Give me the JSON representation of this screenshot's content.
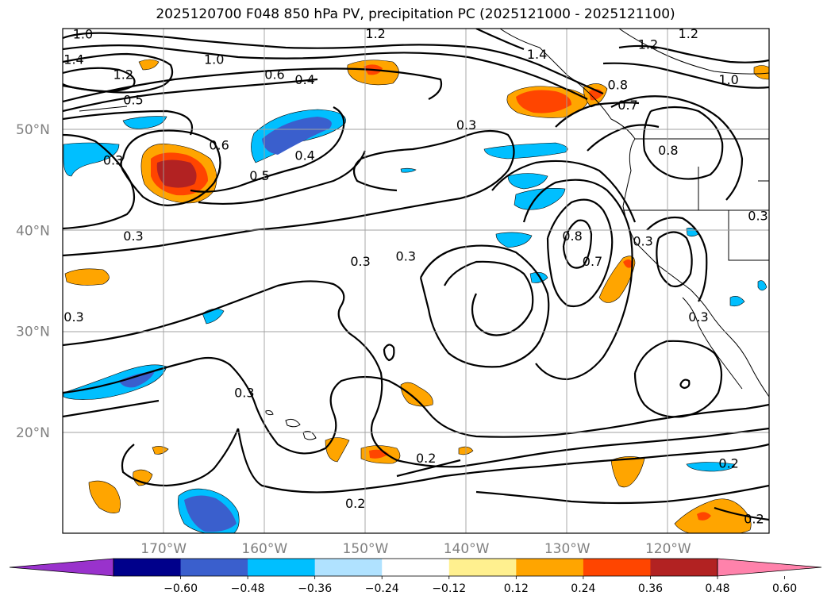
{
  "title": "2025120700 F048 850 hPa PV, precipitation PC (2025121000 - 2025121100)",
  "map": {
    "projection": "PlateCarree",
    "lon_range": [
      -180,
      -110
    ],
    "lat_range": [
      10,
      60
    ],
    "gridlines": true,
    "lat_ticks": [
      {
        "value": 50,
        "label": "50°N"
      },
      {
        "value": 40,
        "label": "40°N"
      },
      {
        "value": 30,
        "label": "30°N"
      },
      {
        "value": 20,
        "label": "20°N"
      }
    ],
    "lon_ticks": [
      {
        "value": -170,
        "label": "170°W"
      },
      {
        "value": -160,
        "label": "160°W"
      },
      {
        "value": -150,
        "label": "150°W"
      },
      {
        "value": -140,
        "label": "140°W"
      },
      {
        "value": -130,
        "label": "130°W"
      },
      {
        "value": -120,
        "label": "120°W"
      }
    ],
    "contour_labels": [
      {
        "text": "1.0",
        "lon": -178,
        "lat": 59
      },
      {
        "text": "1.4",
        "lon": -180,
        "lat": 56.5
      },
      {
        "text": "1.2",
        "lon": -174,
        "lat": 55
      },
      {
        "text": "1.0",
        "lon": -165,
        "lat": 56.5
      },
      {
        "text": "0.6",
        "lon": -159,
        "lat": 55
      },
      {
        "text": "0.4",
        "lon": -156,
        "lat": 54.5
      },
      {
        "text": "0.5",
        "lon": -173,
        "lat": 52.5
      },
      {
        "text": "0.3",
        "lon": -175,
        "lat": 46.5
      },
      {
        "text": "0.6",
        "lon": -164.5,
        "lat": 48
      },
      {
        "text": "0.5",
        "lon": -160.5,
        "lat": 45
      },
      {
        "text": "0.4",
        "lon": -156,
        "lat": 47
      },
      {
        "text": "0.3",
        "lon": -140,
        "lat": 50
      },
      {
        "text": "1.2",
        "lon": -149,
        "lat": 60.5
      },
      {
        "text": "1.4",
        "lon": -133,
        "lat": 57
      },
      {
        "text": "1.2",
        "lon": -122,
        "lat": 58
      },
      {
        "text": "1.2",
        "lon": -118,
        "lat": 61
      },
      {
        "text": "1.0",
        "lon": -114,
        "lat": 54.5
      },
      {
        "text": "0.8",
        "lon": -125,
        "lat": 54
      },
      {
        "text": "0.7",
        "lon": -124,
        "lat": 52
      },
      {
        "text": "0.8",
        "lon": -120,
        "lat": 47.5
      },
      {
        "text": "0.8",
        "lon": -129.5,
        "lat": 39
      },
      {
        "text": "0.7",
        "lon": -127.5,
        "lat": 36.5
      },
      {
        "text": "0.3",
        "lon": -150.5,
        "lat": 36.5
      },
      {
        "text": "0.3",
        "lon": -146,
        "lat": 37
      },
      {
        "text": "0.3",
        "lon": -173,
        "lat": 39
      },
      {
        "text": "0.3",
        "lon": -180,
        "lat": 31
      },
      {
        "text": "0.3",
        "lon": -122.5,
        "lat": 38.5
      },
      {
        "text": "0.3",
        "lon": -117,
        "lat": 31
      },
      {
        "text": "0.3",
        "lon": -110.5,
        "lat": 41
      },
      {
        "text": "0.3",
        "lon": -162,
        "lat": 23.5
      },
      {
        "text": "0.2",
        "lon": -144,
        "lat": 17
      },
      {
        "text": "0.2",
        "lon": -151,
        "lat": 12.5
      },
      {
        "text": "0.2",
        "lon": -114,
        "lat": 16.5
      },
      {
        "text": "0.2",
        "lon": -111.5,
        "lat": 11
      }
    ]
  },
  "colorbar": {
    "levels": [
      "−0.60",
      "−0.48",
      "−0.36",
      "−0.24",
      "−0.12",
      "0.12",
      "0.24",
      "0.36",
      "0.48",
      "0.60"
    ],
    "colors": [
      "#9932cc",
      "#00008b",
      "#3a5fcd",
      "#00bfff",
      "#b0e2ff",
      "#ffffff",
      "#fff08f",
      "#ffa500",
      "#ff4500",
      "#b22222",
      "#ff82ab"
    ],
    "extend": "both"
  }
}
